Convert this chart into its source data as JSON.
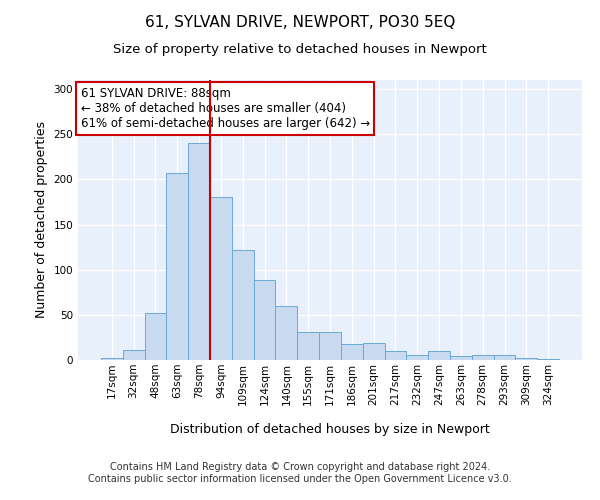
{
  "title": "61, SYLVAN DRIVE, NEWPORT, PO30 5EQ",
  "subtitle": "Size of property relative to detached houses in Newport",
  "xlabel": "Distribution of detached houses by size in Newport",
  "ylabel": "Number of detached properties",
  "categories": [
    "17sqm",
    "32sqm",
    "48sqm",
    "63sqm",
    "78sqm",
    "94sqm",
    "109sqm",
    "124sqm",
    "140sqm",
    "155sqm",
    "171sqm",
    "186sqm",
    "201sqm",
    "217sqm",
    "232sqm",
    "247sqm",
    "263sqm",
    "278sqm",
    "293sqm",
    "309sqm",
    "324sqm"
  ],
  "values": [
    2,
    11,
    52,
    207,
    240,
    181,
    122,
    89,
    60,
    31,
    31,
    18,
    19,
    10,
    6,
    10,
    4,
    5,
    5,
    2,
    1
  ],
  "bar_color": "#c8daf0",
  "bar_edge_color": "#6aaad4",
  "background_color": "#e8f0fb",
  "grid_color": "#ffffff",
  "vline_x_index": 4,
  "vline_color": "#cc0000",
  "annotation_text": "61 SYLVAN DRIVE: 88sqm\n← 38% of detached houses are smaller (404)\n61% of semi-detached houses are larger (642) →",
  "annotation_box_facecolor": "#ffffff",
  "annotation_box_edgecolor": "#cc0000",
  "footer_text": "Contains HM Land Registry data © Crown copyright and database right 2024.\nContains public sector information licensed under the Open Government Licence v3.0.",
  "ylim": [
    0,
    310
  ],
  "title_fontsize": 11,
  "subtitle_fontsize": 9.5,
  "xlabel_fontsize": 9,
  "ylabel_fontsize": 9,
  "tick_fontsize": 7.5,
  "annotation_fontsize": 8.5,
  "footer_fontsize": 7
}
